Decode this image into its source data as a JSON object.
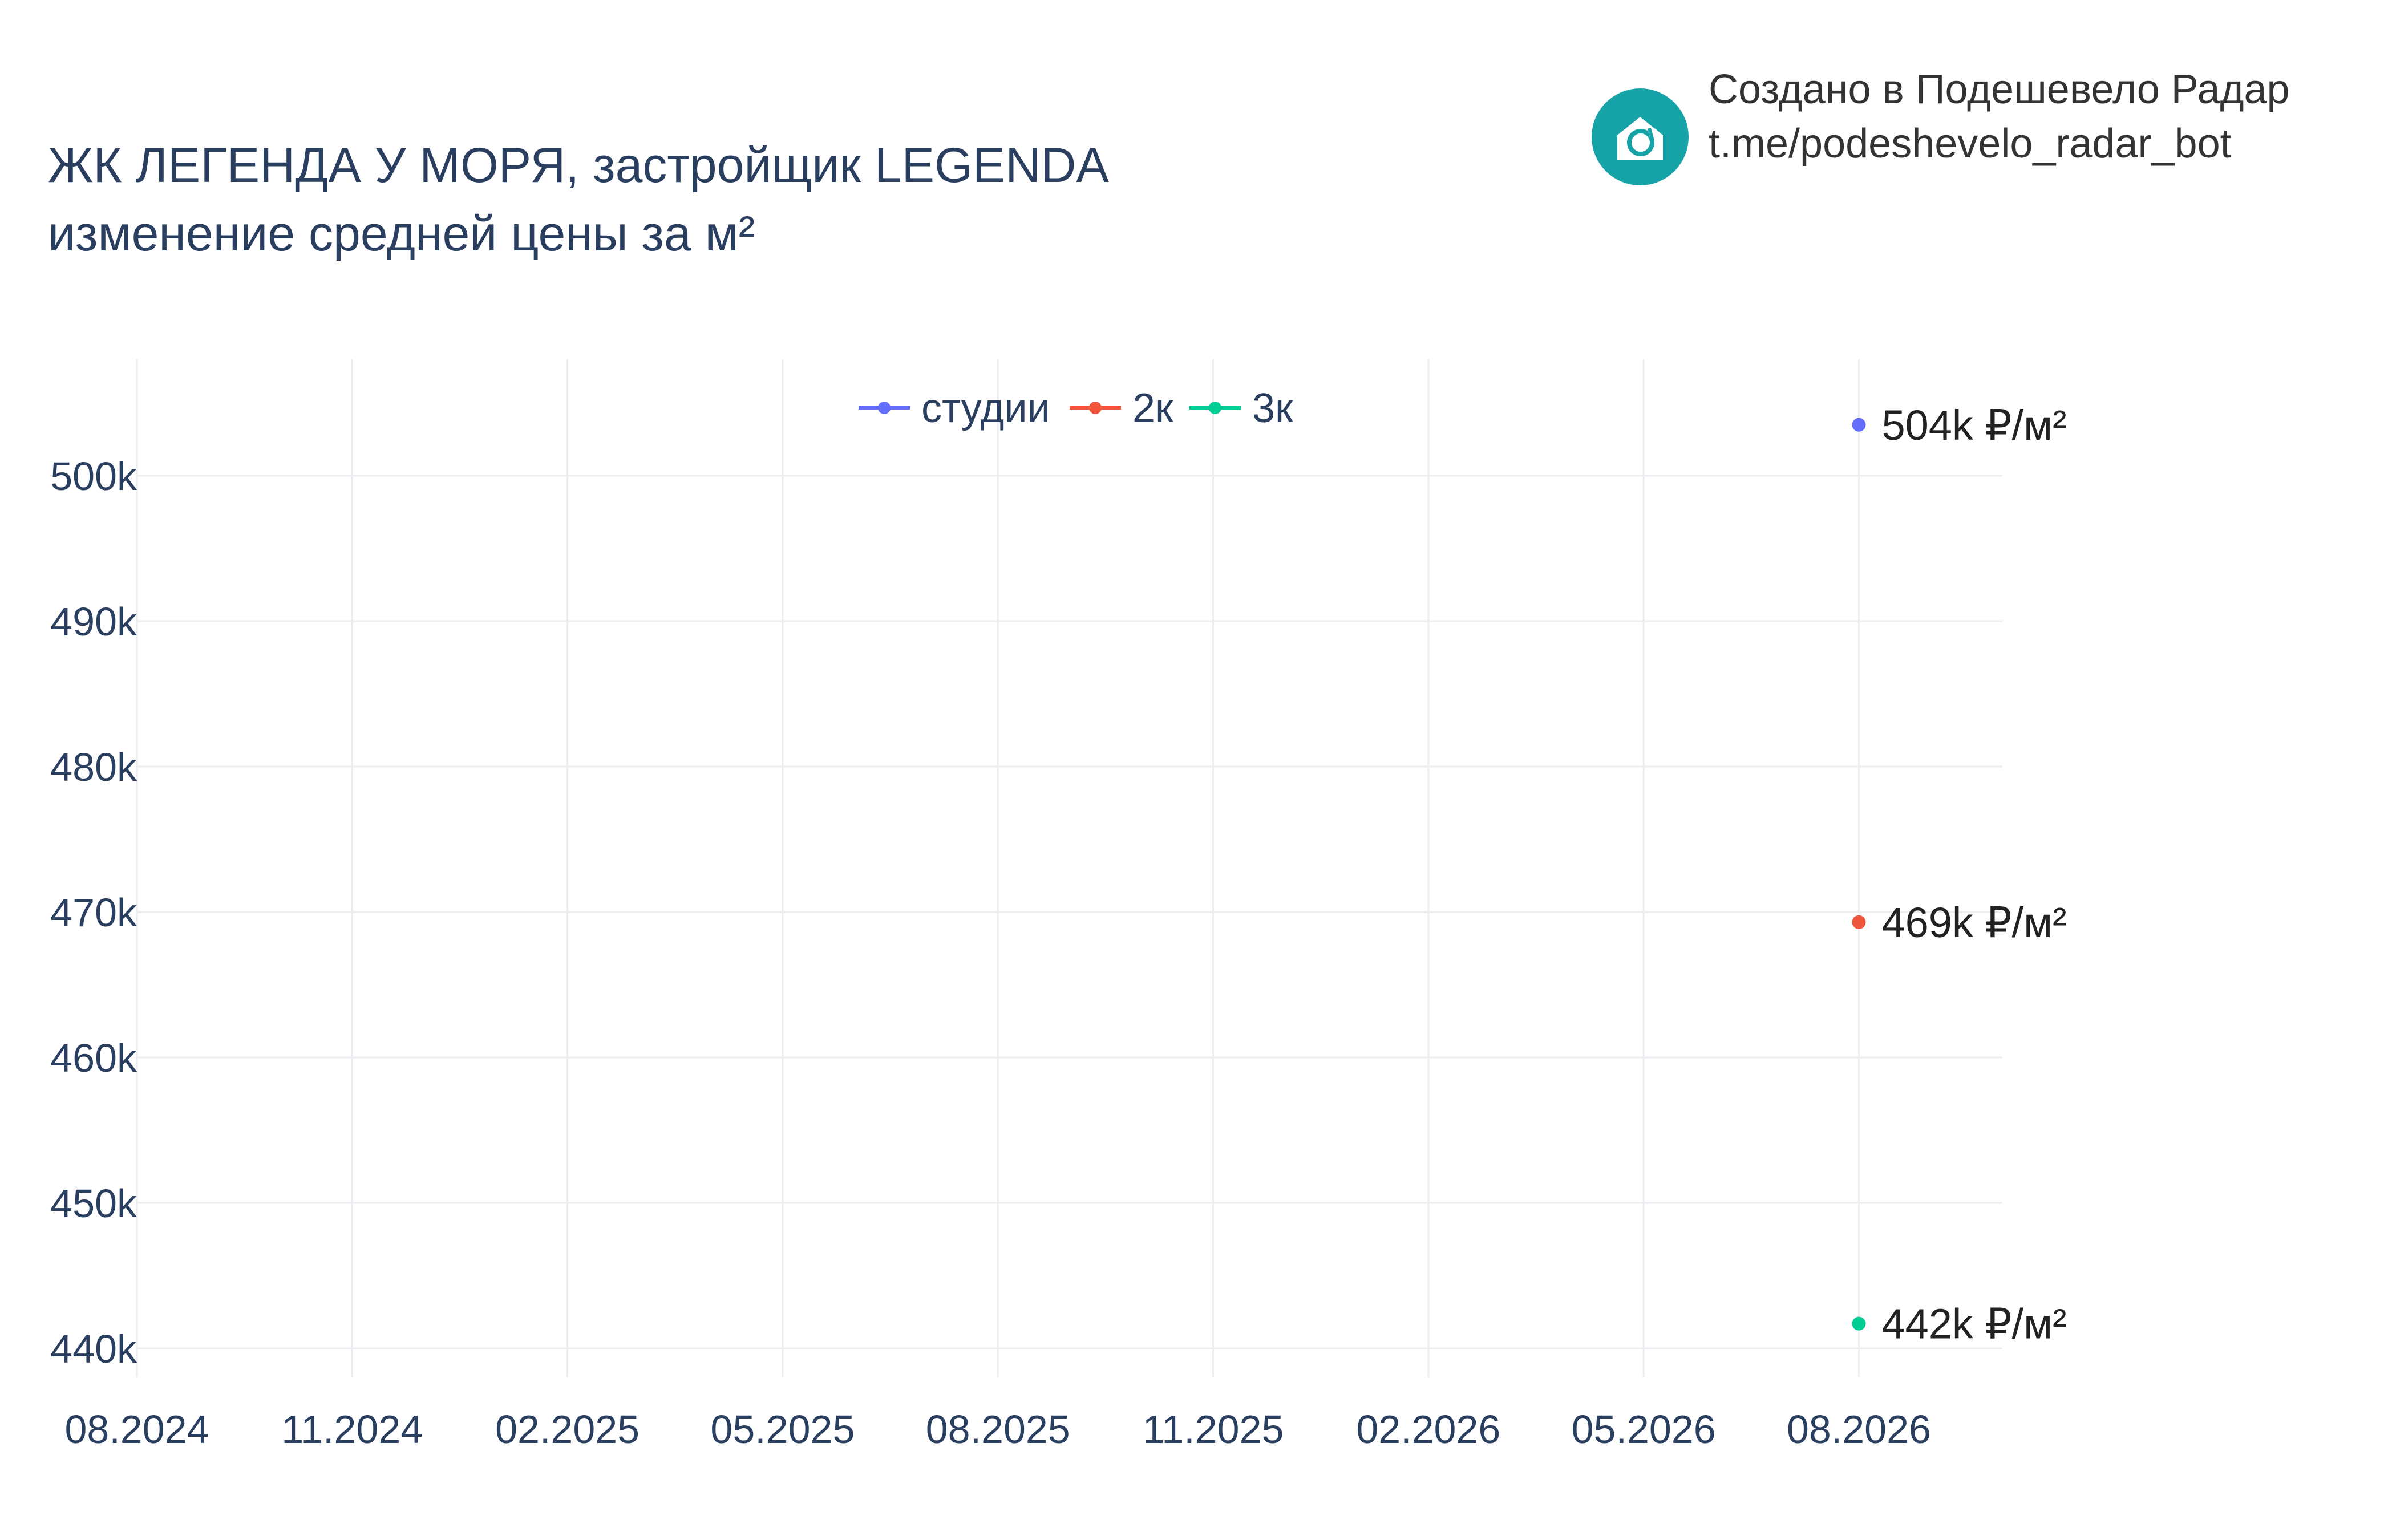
{
  "header": {
    "title_line1": "ЖК ЛЕГЕНДА У МОРЯ, застройщик LEGENDA",
    "title_line2": "изменение средней цены за м²"
  },
  "branding": {
    "line1": "Создано в Подешевело Радар",
    "line2": "t.me/podeshevelo_radar_bot",
    "logo_icon": "house-refresh-icon",
    "logo_color": "#15a3a8"
  },
  "chart_data": {
    "type": "line",
    "title": "ЖК ЛЕГЕНДА У МОРЯ, застройщик LEGENDA изменение средней цены за м²",
    "xlabel": "",
    "ylabel": "",
    "x_ticks": [
      "08.2024",
      "11.2024",
      "02.2025",
      "05.2025",
      "08.2025",
      "11.2025",
      "02.2026",
      "05.2026",
      "08.2026"
    ],
    "y_ticks": [
      "440k",
      "450k",
      "460k",
      "470k",
      "480k",
      "490k",
      "500k"
    ],
    "ylim": [
      438000,
      508000
    ],
    "xlim": [
      "08.2024",
      "10.2026"
    ],
    "grid": true,
    "legend_position": "top-center",
    "series": [
      {
        "name": "студии",
        "color": "#636efa",
        "points": [
          {
            "x": "08.2026",
            "y": 503500,
            "label": "504k ₽/м²"
          }
        ]
      },
      {
        "name": "2к",
        "color": "#ef553b",
        "points": [
          {
            "x": "08.2026",
            "y": 469300,
            "label": "469k ₽/м²"
          }
        ]
      },
      {
        "name": "3к",
        "color": "#00cc96",
        "points": [
          {
            "x": "08.2026",
            "y": 441700,
            "label": "442k ₽/м²"
          }
        ]
      }
    ]
  }
}
